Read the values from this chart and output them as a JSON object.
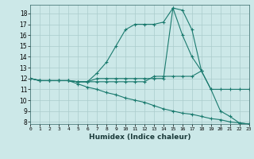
{
  "xlabel": "Humidex (Indice chaleur)",
  "bg_color": "#cce8e8",
  "grid_color": "#aacccc",
  "line_color": "#1a7a6e",
  "xlim": [
    0,
    23
  ],
  "ylim": [
    7.8,
    18.8
  ],
  "xtick_labels": [
    "0",
    "1",
    "2",
    "3",
    "4",
    "5",
    "6",
    "7",
    "8",
    "9",
    "10",
    "11",
    "12",
    "13",
    "14",
    "15",
    "16",
    "17",
    "18",
    "19",
    "20",
    "21",
    "22",
    "23"
  ],
  "yticks": [
    8,
    9,
    10,
    11,
    12,
    13,
    14,
    15,
    16,
    17,
    18
  ],
  "lines": [
    {
      "x": [
        0,
        1,
        2,
        3,
        4,
        5,
        6,
        7,
        8,
        9,
        10,
        11,
        12,
        13,
        14,
        15,
        16,
        17,
        18,
        19,
        20,
        21,
        22,
        23
      ],
      "y": [
        12,
        11.8,
        11.8,
        11.8,
        11.8,
        11.7,
        11.7,
        12.5,
        13.5,
        15.0,
        16.5,
        17.0,
        17.0,
        17.0,
        17.2,
        18.5,
        16.0,
        14.0,
        12.7,
        null,
        null,
        null,
        null,
        null
      ]
    },
    {
      "x": [
        0,
        1,
        2,
        3,
        4,
        5,
        6,
        7,
        8,
        9,
        10,
        11,
        12,
        13,
        14,
        15,
        16,
        17,
        18,
        19,
        20,
        21,
        22,
        23
      ],
      "y": [
        12,
        11.8,
        11.8,
        11.8,
        11.8,
        11.7,
        11.7,
        12.0,
        12.0,
        12.0,
        12.0,
        12.0,
        12.0,
        12.0,
        12.0,
        18.5,
        18.3,
        16.5,
        12.7,
        11.0,
        9.0,
        8.5,
        7.9,
        7.8
      ]
    },
    {
      "x": [
        0,
        1,
        2,
        3,
        4,
        5,
        6,
        7,
        8,
        9,
        10,
        11,
        12,
        13,
        14,
        15,
        16,
        17,
        18,
        19,
        20,
        21,
        22,
        23
      ],
      "y": [
        12,
        11.8,
        11.8,
        11.8,
        11.8,
        11.7,
        11.7,
        11.7,
        11.7,
        11.7,
        11.7,
        11.7,
        11.7,
        12.2,
        12.2,
        12.2,
        12.2,
        12.2,
        12.7,
        11.0,
        11.0,
        11.0,
        11.0,
        11.0
      ]
    },
    {
      "x": [
        0,
        1,
        2,
        3,
        4,
        5,
        6,
        7,
        8,
        9,
        10,
        11,
        12,
        13,
        14,
        15,
        16,
        17,
        18,
        19,
        20,
        21,
        22,
        23
      ],
      "y": [
        12,
        11.8,
        11.8,
        11.8,
        11.8,
        11.5,
        11.2,
        11.0,
        10.7,
        10.5,
        10.2,
        10.0,
        9.8,
        9.5,
        9.2,
        9.0,
        8.8,
        8.7,
        8.5,
        8.3,
        8.2,
        8.0,
        7.9,
        7.8
      ]
    }
  ]
}
